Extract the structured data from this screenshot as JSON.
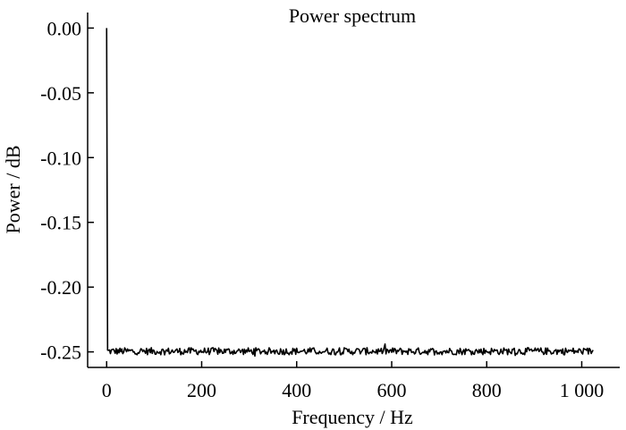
{
  "chart_data": {
    "type": "line",
    "title": "Power spectrum",
    "xlabel": "Frequency / Hz",
    "ylabel": "Power / dB",
    "xlim": [
      -40,
      1080
    ],
    "ylim": [
      -0.262,
      0.012
    ],
    "x_ticks": [
      0,
      200,
      400,
      600,
      800,
      1000
    ],
    "x_tick_labels": [
      "0",
      "200",
      "400",
      "600",
      "800",
      "1 000"
    ],
    "y_ticks": [
      0.0,
      -0.05,
      -0.1,
      -0.15,
      -0.2,
      -0.25
    ],
    "y_tick_labels": [
      "0.00",
      "-0.05",
      "-0.10",
      "-0.15",
      "-0.20",
      "-0.25"
    ],
    "grid": false,
    "series": [
      {
        "color": "#000000",
        "description": "DC spike at 0 Hz reaching 0.00 dB, then a noise floor of about -0.25 dB (±0.003) out to about 1024 Hz",
        "x_start": 0,
        "x_end": 1024,
        "x_step": 2,
        "floor": -0.2495,
        "points": [
          [
            0,
            0.0
          ],
          [
            2,
            -0.25
          ],
          [
            1024,
            -0.2495
          ]
        ]
      }
    ]
  }
}
